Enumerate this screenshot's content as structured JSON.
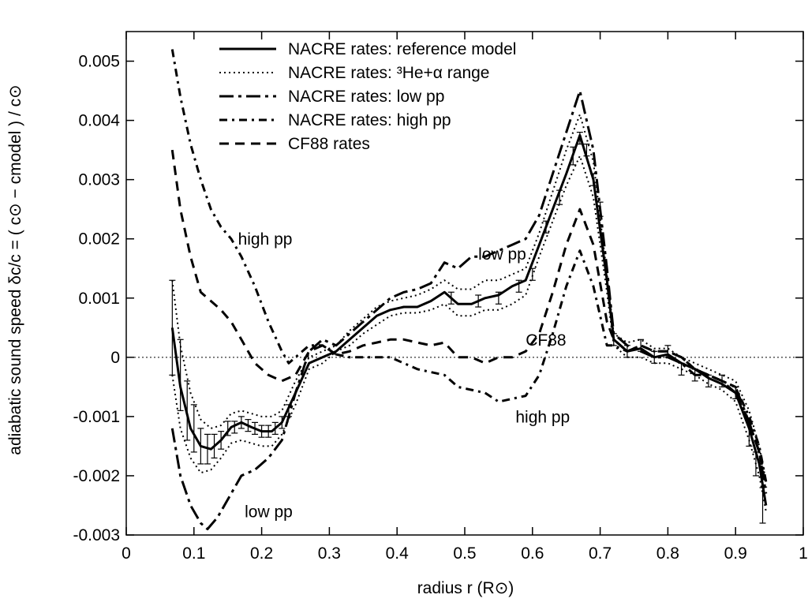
{
  "chart_data": {
    "type": "line",
    "xlabel": "radius   r   (R⊙)",
    "ylabel": "adiabatic sound speed    δc/c = ( c⊙ − cmodel ) / c⊙",
    "xlim": [
      0,
      1
    ],
    "ylim": [
      -0.003,
      0.0055
    ],
    "x_ticks": [
      0,
      0.1,
      0.2,
      0.3,
      0.4,
      0.5,
      0.6,
      0.7,
      0.8,
      0.9,
      1
    ],
    "x_tick_labels": [
      "0",
      "0.1",
      "0.2",
      "0.3",
      "0.4",
      "0.5",
      "0.6",
      "0.7",
      "0.8",
      "0.9",
      "1"
    ],
    "y_ticks": [
      -0.003,
      -0.002,
      -0.001,
      0,
      0.001,
      0.002,
      0.003,
      0.004,
      0.005
    ],
    "y_tick_labels": [
      "-0.003",
      "-0.002",
      "-0.001",
      "0",
      "0.001",
      "0.002",
      "0.003",
      "0.004",
      "0.005"
    ],
    "zero_line": true,
    "legend_position": "top-left",
    "series": [
      {
        "name": "NACRE rates: reference model",
        "style": "solid",
        "x": [
          0.068,
          0.08,
          0.095,
          0.11,
          0.125,
          0.14,
          0.155,
          0.17,
          0.185,
          0.2,
          0.215,
          0.23,
          0.25,
          0.27,
          0.29,
          0.31,
          0.33,
          0.35,
          0.37,
          0.39,
          0.41,
          0.43,
          0.45,
          0.47,
          0.49,
          0.51,
          0.53,
          0.55,
          0.57,
          0.59,
          0.61,
          0.63,
          0.65,
          0.67,
          0.69,
          0.71,
          0.72,
          0.74,
          0.76,
          0.78,
          0.8,
          0.82,
          0.84,
          0.86,
          0.88,
          0.9,
          0.92,
          0.935,
          0.945
        ],
        "y": [
          0.0005,
          -0.0005,
          -0.0012,
          -0.0015,
          -0.00155,
          -0.0014,
          -0.00118,
          -0.0011,
          -0.00118,
          -0.00125,
          -0.00125,
          -0.0011,
          -0.0006,
          -0.0001,
          0.0,
          0.0001,
          0.0003,
          0.0005,
          0.0007,
          0.0008,
          0.00085,
          0.00085,
          0.00095,
          0.0011,
          0.0009,
          0.0009,
          0.001,
          0.00105,
          0.0012,
          0.0013,
          0.0019,
          0.0025,
          0.0031,
          0.00375,
          0.003,
          0.0013,
          0.0003,
          0.0001,
          0.00015,
          0.0,
          5e-05,
          -0.0001,
          -0.0002,
          -0.00035,
          -0.00045,
          -0.0006,
          -0.0012,
          -0.0018,
          -0.0025
        ]
      },
      {
        "name": "NACRE rates: ³He+α range",
        "style": "dotted",
        "x": [
          0.068,
          0.08,
          0.095,
          0.11,
          0.125,
          0.14,
          0.155,
          0.17,
          0.185,
          0.2,
          0.215,
          0.23,
          0.25,
          0.27,
          0.29,
          0.31,
          0.33,
          0.35,
          0.37,
          0.39,
          0.41,
          0.43,
          0.45,
          0.47,
          0.49,
          0.51,
          0.53,
          0.55,
          0.57,
          0.59,
          0.61,
          0.63,
          0.65,
          0.67,
          0.69,
          0.71,
          0.72,
          0.74,
          0.76,
          0.78,
          0.8,
          0.82,
          0.84,
          0.86,
          0.88,
          0.9,
          0.92,
          0.935,
          0.945
        ],
        "y": [
          0.0013,
          0.0002,
          -0.0006,
          -0.00105,
          -0.0012,
          -0.00115,
          -0.00095,
          -0.0009,
          -0.00095,
          -0.001,
          -0.001,
          -0.0009,
          -0.0004,
          0.0,
          0.0001,
          0.0002,
          0.00045,
          0.00065,
          0.00085,
          0.00095,
          0.001,
          0.00105,
          0.00115,
          0.0013,
          0.00115,
          0.00115,
          0.0013,
          0.0013,
          0.0014,
          0.0015,
          0.0021,
          0.0028,
          0.0035,
          0.0041,
          0.0033,
          0.0014,
          0.0004,
          0.00025,
          0.0003,
          0.00015,
          0.00015,
          0.0,
          -0.0001,
          -0.0002,
          -0.0003,
          -0.0004,
          -0.0009,
          -0.0015,
          -0.0021
        ]
      },
      {
        "name": "NACRE rates: ³He+α range (lower)",
        "style": "dotted",
        "x": [
          0.068,
          0.08,
          0.095,
          0.11,
          0.125,
          0.14,
          0.155,
          0.17,
          0.185,
          0.2,
          0.215,
          0.23,
          0.25,
          0.27,
          0.29,
          0.31,
          0.33,
          0.35,
          0.37,
          0.39,
          0.41,
          0.43,
          0.45,
          0.47,
          0.49,
          0.51,
          0.53,
          0.55,
          0.57,
          0.59,
          0.61,
          0.63,
          0.65,
          0.67,
          0.69,
          0.71,
          0.72,
          0.74,
          0.76,
          0.78,
          0.8,
          0.82,
          0.84,
          0.86,
          0.88,
          0.9,
          0.92,
          0.935,
          0.945
        ],
        "y": [
          -0.0003,
          -0.0012,
          -0.0017,
          -0.00195,
          -0.0019,
          -0.0017,
          -0.00145,
          -0.0014,
          -0.00145,
          -0.0015,
          -0.0015,
          -0.0013,
          -0.0008,
          -0.0002,
          -0.0001,
          0.0001,
          0.0002,
          0.0004,
          0.00055,
          0.0007,
          0.00075,
          0.00075,
          0.0008,
          0.0009,
          0.0007,
          0.0007,
          0.0008,
          0.0008,
          0.0009,
          0.00105,
          0.0017,
          0.0023,
          0.0029,
          0.0034,
          0.0027,
          0.0011,
          0.0002,
          0.0,
          0.0,
          -0.0001,
          -0.0001,
          -0.0002,
          -0.0003,
          -0.00045,
          -0.00055,
          -0.00075,
          -0.0014,
          -0.002,
          -0.0026
        ]
      },
      {
        "name": "NACRE rates: low pp",
        "style": "dashdot-long",
        "x": [
          0.068,
          0.08,
          0.095,
          0.11,
          0.12,
          0.135,
          0.15,
          0.17,
          0.19,
          0.21,
          0.23,
          0.25,
          0.27,
          0.29,
          0.31,
          0.33,
          0.35,
          0.37,
          0.39,
          0.41,
          0.43,
          0.45,
          0.47,
          0.49,
          0.51,
          0.53,
          0.55,
          0.57,
          0.59,
          0.61,
          0.63,
          0.65,
          0.67,
          0.69,
          0.71,
          0.72,
          0.74,
          0.76,
          0.78,
          0.8,
          0.82,
          0.84,
          0.86,
          0.88,
          0.9,
          0.92,
          0.935,
          0.945
        ],
        "y": [
          -0.0012,
          -0.002,
          -0.0025,
          -0.0028,
          -0.0029,
          -0.0027,
          -0.0024,
          -0.002,
          -0.0019,
          -0.0017,
          -0.0014,
          -0.0006,
          0.0001,
          0.0003,
          0.0002,
          0.0004,
          0.0006,
          0.0008,
          0.001,
          0.0011,
          0.00115,
          0.00125,
          0.0016,
          0.0015,
          0.0017,
          0.0017,
          0.0018,
          0.0019,
          0.002,
          0.0024,
          0.0031,
          0.0038,
          0.0045,
          0.0035,
          0.0015,
          0.0004,
          0.0002,
          0.0001,
          0.0,
          0.0,
          -0.0001,
          -0.0003,
          -0.0003,
          -0.0004,
          -0.0005,
          -0.0011,
          -0.0016,
          -0.0023
        ]
      },
      {
        "name": "NACRE rates: high pp",
        "style": "dashdot-short",
        "x": [
          0.068,
          0.08,
          0.095,
          0.11,
          0.125,
          0.14,
          0.155,
          0.17,
          0.19,
          0.21,
          0.23,
          0.24,
          0.25,
          0.27,
          0.29,
          0.31,
          0.33,
          0.35,
          0.37,
          0.39,
          0.41,
          0.43,
          0.45,
          0.47,
          0.49,
          0.51,
          0.53,
          0.55,
          0.57,
          0.59,
          0.61,
          0.63,
          0.65,
          0.67,
          0.69,
          0.71,
          0.72,
          0.74,
          0.76,
          0.78,
          0.8,
          0.82,
          0.84,
          0.86,
          0.88,
          0.9,
          0.92,
          0.935,
          0.945
        ],
        "y": [
          0.0052,
          0.0044,
          0.0036,
          0.003,
          0.0025,
          0.0022,
          0.002,
          0.0017,
          0.0012,
          0.0006,
          0.0001,
          -0.0001,
          0.0,
          0.0002,
          0.0002,
          5e-05,
          0.0,
          0.0,
          0.0,
          0.0,
          -0.0001,
          -0.0002,
          -0.00025,
          -0.0003,
          -0.0005,
          -0.00055,
          -0.0006,
          -0.00075,
          -0.0007,
          -0.00065,
          -0.0003,
          0.0004,
          0.0012,
          0.0018,
          0.0012,
          0.0002,
          0.0002,
          0.0001,
          0.0002,
          0.0001,
          0.0001,
          0.0,
          -0.0002,
          -0.0003,
          -0.0004,
          -0.0005,
          -0.001,
          -0.0015,
          -0.0021
        ]
      },
      {
        "name": "CF88 rates",
        "style": "dashed",
        "x": [
          0.068,
          0.08,
          0.095,
          0.11,
          0.125,
          0.14,
          0.155,
          0.17,
          0.19,
          0.21,
          0.23,
          0.25,
          0.27,
          0.29,
          0.31,
          0.33,
          0.35,
          0.37,
          0.39,
          0.41,
          0.43,
          0.45,
          0.47,
          0.49,
          0.51,
          0.53,
          0.55,
          0.57,
          0.59,
          0.61,
          0.63,
          0.65,
          0.67,
          0.69,
          0.71,
          0.72,
          0.74,
          0.76,
          0.78,
          0.8,
          0.82,
          0.84,
          0.86,
          0.88,
          0.9,
          0.92,
          0.935,
          0.945
        ],
        "y": [
          0.0035,
          0.0025,
          0.0017,
          0.0011,
          0.00095,
          0.0008,
          0.0006,
          0.0003,
          -0.0001,
          -0.0003,
          -0.0004,
          -0.0003,
          0.0001,
          0.0002,
          5e-05,
          0.0001,
          0.0002,
          0.00025,
          0.0003,
          0.0003,
          0.00025,
          0.0002,
          0.00025,
          0.0,
          0.0,
          -0.0001,
          0.0,
          0.0,
          0.0001,
          0.0004,
          0.0011,
          0.0019,
          0.0025,
          0.0019,
          0.0006,
          0.0003,
          0.0001,
          0.0002,
          0.0001,
          0.0001,
          0.0,
          -0.0002,
          -0.0003,
          -0.0004,
          -0.0006,
          -0.0011,
          -0.0016,
          -0.0022
        ]
      }
    ],
    "error_bars": {
      "x": [
        0.068,
        0.08,
        0.09,
        0.1,
        0.11,
        0.12,
        0.13,
        0.14,
        0.15,
        0.16,
        0.17,
        0.18,
        0.19,
        0.2,
        0.21,
        0.22,
        0.23,
        0.24,
        0.48,
        0.52,
        0.55,
        0.58,
        0.6,
        0.62,
        0.64,
        0.66,
        0.67,
        0.68,
        0.69,
        0.7,
        0.72,
        0.74,
        0.76,
        0.78,
        0.8,
        0.82,
        0.84,
        0.86,
        0.88,
        0.9,
        0.92,
        0.93,
        0.94
      ],
      "y": [
        0.0005,
        -0.0003,
        -0.0009,
        -0.0012,
        -0.0015,
        -0.00155,
        -0.0015,
        -0.0014,
        -0.0012,
        -0.00118,
        -0.0011,
        -0.00115,
        -0.0012,
        -0.00125,
        -0.00125,
        -0.0012,
        -0.0011,
        -0.0009,
        0.001,
        0.00095,
        0.001,
        0.0012,
        0.0014,
        0.0022,
        0.0027,
        0.0034,
        0.0037,
        0.0035,
        0.003,
        0.0025,
        0.0003,
        0.0001,
        0.0002,
        0.0,
        0.0001,
        -0.0002,
        -0.0003,
        -0.0004,
        -0.0004,
        -0.0006,
        -0.0013,
        -0.0018,
        -0.0025
      ],
      "err": [
        0.0008,
        0.0006,
        0.0005,
        0.0004,
        0.0003,
        0.00025,
        0.0002,
        0.00015,
        0.00012,
        0.0001,
        0.0001,
        0.0001,
        0.0001,
        0.0001,
        0.0001,
        0.0001,
        0.0001,
        0.0001,
        0.0001,
        0.0001,
        0.0001,
        0.0001,
        0.0001,
        0.0001,
        0.00012,
        0.00015,
        0.0001,
        0.0001,
        0.0001,
        0.00012,
        0.0001,
        0.0001,
        0.0001,
        0.0001,
        0.0001,
        0.0001,
        0.0001,
        0.0001,
        0.0001,
        0.0001,
        0.0002,
        0.0002,
        0.0003
      ]
    },
    "legend": [
      {
        "label": "NACRE rates: reference model",
        "style": "solid"
      },
      {
        "label": "NACRE rates: ³He+α range",
        "style": "dotted"
      },
      {
        "label": "NACRE rates: low pp",
        "style": "dashdot-long"
      },
      {
        "label": "NACRE rates: high pp",
        "style": "dashdot-short"
      },
      {
        "label": "CF88 rates",
        "style": "dashed"
      }
    ],
    "annotations": [
      {
        "text": "high pp",
        "x": 0.165,
        "y": 0.0019
      },
      {
        "text": "low pp",
        "x": 0.52,
        "y": 0.00165
      },
      {
        "text": "CF88",
        "x": 0.59,
        "y": 0.0002
      },
      {
        "text": "high pp",
        "x": 0.575,
        "y": -0.0011
      },
      {
        "text": "low pp",
        "x": 0.175,
        "y": -0.0027
      }
    ]
  },
  "styles": {
    "solid": {
      "stroke_width": 3,
      "dash": ""
    },
    "dotted": {
      "stroke_width": 2,
      "dash": "2,4"
    },
    "dashdot-long": {
      "stroke_width": 3,
      "dash": "18,6,4,6"
    },
    "dashdot-short": {
      "stroke_width": 3,
      "dash": "10,6,3,6"
    },
    "dashed": {
      "stroke_width": 3,
      "dash": "12,8"
    }
  }
}
